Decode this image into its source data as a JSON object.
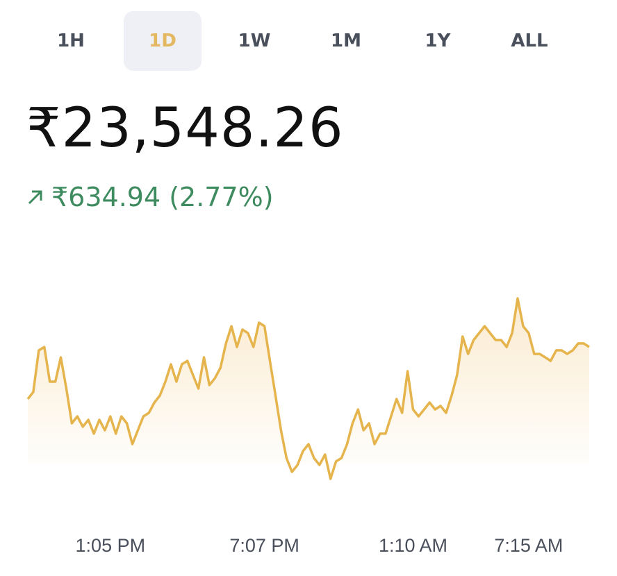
{
  "tabs": [
    {
      "label": "1H"
    },
    {
      "label": "1D",
      "selected": true
    },
    {
      "label": "1W"
    },
    {
      "label": "1M"
    },
    {
      "label": "1Y"
    },
    {
      "label": "ALL"
    }
  ],
  "price": "₹23,548.26",
  "change": "₹634.94 (2.77%)",
  "chart_data": {
    "type": "line",
    "color": "#e6b44c",
    "values": [
      22911,
      22996,
      23506,
      23548,
      23123,
      23123,
      23421,
      23038,
      22613,
      22698,
      22571,
      22656,
      22486,
      22656,
      22528,
      22698,
      22486,
      22698,
      22613,
      22358,
      22528,
      22698,
      22741,
      22868,
      22953,
      23123,
      23336,
      23123,
      23336,
      23378,
      23208,
      23038,
      23421,
      23081,
      23166,
      23293,
      23591,
      23803,
      23548,
      23761,
      23718,
      23548,
      23846,
      23803,
      23378,
      22953,
      22528,
      22188,
      22018,
      22103,
      22273,
      22358,
      22188,
      22103,
      22231,
      21933,
      22146,
      22188,
      22358,
      22613,
      22783,
      22528,
      22613,
      22358,
      22486,
      22486,
      22698,
      22911,
      22741,
      23251,
      22783,
      22698,
      22783,
      22868,
      22783,
      22826,
      22741,
      22953,
      23208,
      23676,
      23463,
      23633,
      23718,
      23803,
      23718,
      23633,
      23633,
      23548,
      23718,
      24143,
      23803,
      23718,
      23463,
      23463,
      23421,
      23378,
      23506,
      23506,
      23463,
      23506,
      23591,
      23591,
      23548.26
    ],
    "ylim": [
      21678,
      24993
    ],
    "xticks": [
      {
        "value": 15,
        "label": "1:05 PM"
      },
      {
        "value": 43,
        "label": "7:07 PM"
      },
      {
        "value": 70,
        "label": "1:10 AM"
      },
      {
        "value": 91,
        "label": "7:15 AM"
      }
    ]
  }
}
